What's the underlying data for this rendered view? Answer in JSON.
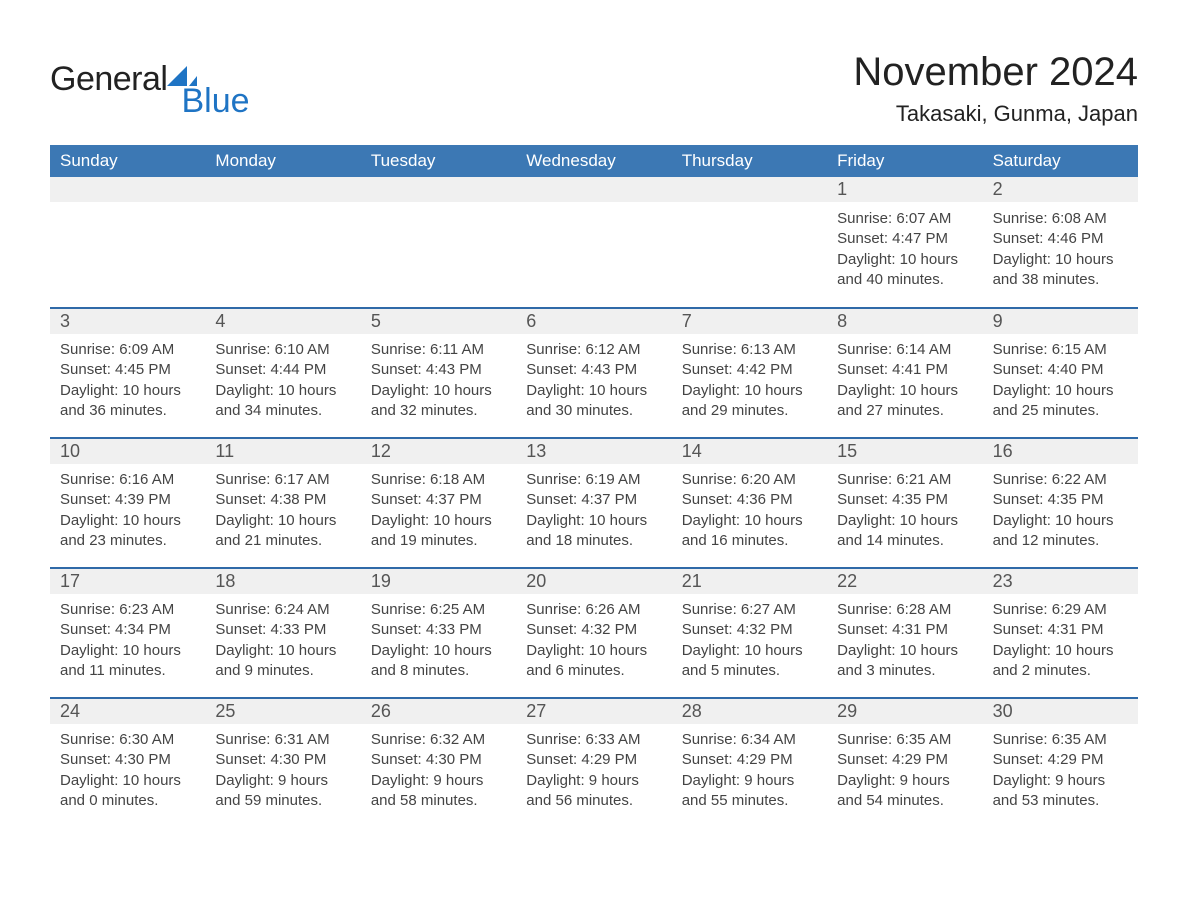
{
  "colors": {
    "header_blue": "#3c78b4",
    "accent_blue": "#2f6aa8",
    "row_grey": "#f0f0f0",
    "text": "#333333",
    "logo_blue": "#1f74c4",
    "background": "#ffffff"
  },
  "logo": {
    "word1": "General",
    "word2": "Blue"
  },
  "title": "November 2024",
  "subtitle": "Takasaki, Gunma, Japan",
  "weekday_headers": [
    "Sunday",
    "Monday",
    "Tuesday",
    "Wednesday",
    "Thursday",
    "Friday",
    "Saturday"
  ],
  "calendar": {
    "type": "table",
    "columns": 7,
    "weeks": [
      {
        "days": [
          {
            "empty": true
          },
          {
            "empty": true
          },
          {
            "empty": true
          },
          {
            "empty": true
          },
          {
            "empty": true
          },
          {
            "num": "1",
            "sunrise": "Sunrise: 6:07 AM",
            "sunset": "Sunset: 4:47 PM",
            "daylight1": "Daylight: 10 hours",
            "daylight2": "and 40 minutes."
          },
          {
            "num": "2",
            "sunrise": "Sunrise: 6:08 AM",
            "sunset": "Sunset: 4:46 PM",
            "daylight1": "Daylight: 10 hours",
            "daylight2": "and 38 minutes."
          }
        ]
      },
      {
        "days": [
          {
            "num": "3",
            "sunrise": "Sunrise: 6:09 AM",
            "sunset": "Sunset: 4:45 PM",
            "daylight1": "Daylight: 10 hours",
            "daylight2": "and 36 minutes."
          },
          {
            "num": "4",
            "sunrise": "Sunrise: 6:10 AM",
            "sunset": "Sunset: 4:44 PM",
            "daylight1": "Daylight: 10 hours",
            "daylight2": "and 34 minutes."
          },
          {
            "num": "5",
            "sunrise": "Sunrise: 6:11 AM",
            "sunset": "Sunset: 4:43 PM",
            "daylight1": "Daylight: 10 hours",
            "daylight2": "and 32 minutes."
          },
          {
            "num": "6",
            "sunrise": "Sunrise: 6:12 AM",
            "sunset": "Sunset: 4:43 PM",
            "daylight1": "Daylight: 10 hours",
            "daylight2": "and 30 minutes."
          },
          {
            "num": "7",
            "sunrise": "Sunrise: 6:13 AM",
            "sunset": "Sunset: 4:42 PM",
            "daylight1": "Daylight: 10 hours",
            "daylight2": "and 29 minutes."
          },
          {
            "num": "8",
            "sunrise": "Sunrise: 6:14 AM",
            "sunset": "Sunset: 4:41 PM",
            "daylight1": "Daylight: 10 hours",
            "daylight2": "and 27 minutes."
          },
          {
            "num": "9",
            "sunrise": "Sunrise: 6:15 AM",
            "sunset": "Sunset: 4:40 PM",
            "daylight1": "Daylight: 10 hours",
            "daylight2": "and 25 minutes."
          }
        ]
      },
      {
        "days": [
          {
            "num": "10",
            "sunrise": "Sunrise: 6:16 AM",
            "sunset": "Sunset: 4:39 PM",
            "daylight1": "Daylight: 10 hours",
            "daylight2": "and 23 minutes."
          },
          {
            "num": "11",
            "sunrise": "Sunrise: 6:17 AM",
            "sunset": "Sunset: 4:38 PM",
            "daylight1": "Daylight: 10 hours",
            "daylight2": "and 21 minutes."
          },
          {
            "num": "12",
            "sunrise": "Sunrise: 6:18 AM",
            "sunset": "Sunset: 4:37 PM",
            "daylight1": "Daylight: 10 hours",
            "daylight2": "and 19 minutes."
          },
          {
            "num": "13",
            "sunrise": "Sunrise: 6:19 AM",
            "sunset": "Sunset: 4:37 PM",
            "daylight1": "Daylight: 10 hours",
            "daylight2": "and 18 minutes."
          },
          {
            "num": "14",
            "sunrise": "Sunrise: 6:20 AM",
            "sunset": "Sunset: 4:36 PM",
            "daylight1": "Daylight: 10 hours",
            "daylight2": "and 16 minutes."
          },
          {
            "num": "15",
            "sunrise": "Sunrise: 6:21 AM",
            "sunset": "Sunset: 4:35 PM",
            "daylight1": "Daylight: 10 hours",
            "daylight2": "and 14 minutes."
          },
          {
            "num": "16",
            "sunrise": "Sunrise: 6:22 AM",
            "sunset": "Sunset: 4:35 PM",
            "daylight1": "Daylight: 10 hours",
            "daylight2": "and 12 minutes."
          }
        ]
      },
      {
        "days": [
          {
            "num": "17",
            "sunrise": "Sunrise: 6:23 AM",
            "sunset": "Sunset: 4:34 PM",
            "daylight1": "Daylight: 10 hours",
            "daylight2": "and 11 minutes."
          },
          {
            "num": "18",
            "sunrise": "Sunrise: 6:24 AM",
            "sunset": "Sunset: 4:33 PM",
            "daylight1": "Daylight: 10 hours",
            "daylight2": "and 9 minutes."
          },
          {
            "num": "19",
            "sunrise": "Sunrise: 6:25 AM",
            "sunset": "Sunset: 4:33 PM",
            "daylight1": "Daylight: 10 hours",
            "daylight2": "and 8 minutes."
          },
          {
            "num": "20",
            "sunrise": "Sunrise: 6:26 AM",
            "sunset": "Sunset: 4:32 PM",
            "daylight1": "Daylight: 10 hours",
            "daylight2": "and 6 minutes."
          },
          {
            "num": "21",
            "sunrise": "Sunrise: 6:27 AM",
            "sunset": "Sunset: 4:32 PM",
            "daylight1": "Daylight: 10 hours",
            "daylight2": "and 5 minutes."
          },
          {
            "num": "22",
            "sunrise": "Sunrise: 6:28 AM",
            "sunset": "Sunset: 4:31 PM",
            "daylight1": "Daylight: 10 hours",
            "daylight2": "and 3 minutes."
          },
          {
            "num": "23",
            "sunrise": "Sunrise: 6:29 AM",
            "sunset": "Sunset: 4:31 PM",
            "daylight1": "Daylight: 10 hours",
            "daylight2": "and 2 minutes."
          }
        ]
      },
      {
        "days": [
          {
            "num": "24",
            "sunrise": "Sunrise: 6:30 AM",
            "sunset": "Sunset: 4:30 PM",
            "daylight1": "Daylight: 10 hours",
            "daylight2": "and 0 minutes."
          },
          {
            "num": "25",
            "sunrise": "Sunrise: 6:31 AM",
            "sunset": "Sunset: 4:30 PM",
            "daylight1": "Daylight: 9 hours",
            "daylight2": "and 59 minutes."
          },
          {
            "num": "26",
            "sunrise": "Sunrise: 6:32 AM",
            "sunset": "Sunset: 4:30 PM",
            "daylight1": "Daylight: 9 hours",
            "daylight2": "and 58 minutes."
          },
          {
            "num": "27",
            "sunrise": "Sunrise: 6:33 AM",
            "sunset": "Sunset: 4:29 PM",
            "daylight1": "Daylight: 9 hours",
            "daylight2": "and 56 minutes."
          },
          {
            "num": "28",
            "sunrise": "Sunrise: 6:34 AM",
            "sunset": "Sunset: 4:29 PM",
            "daylight1": "Daylight: 9 hours",
            "daylight2": "and 55 minutes."
          },
          {
            "num": "29",
            "sunrise": "Sunrise: 6:35 AM",
            "sunset": "Sunset: 4:29 PM",
            "daylight1": "Daylight: 9 hours",
            "daylight2": "and 54 minutes."
          },
          {
            "num": "30",
            "sunrise": "Sunrise: 6:35 AM",
            "sunset": "Sunset: 4:29 PM",
            "daylight1": "Daylight: 9 hours",
            "daylight2": "and 53 minutes."
          }
        ]
      }
    ]
  }
}
